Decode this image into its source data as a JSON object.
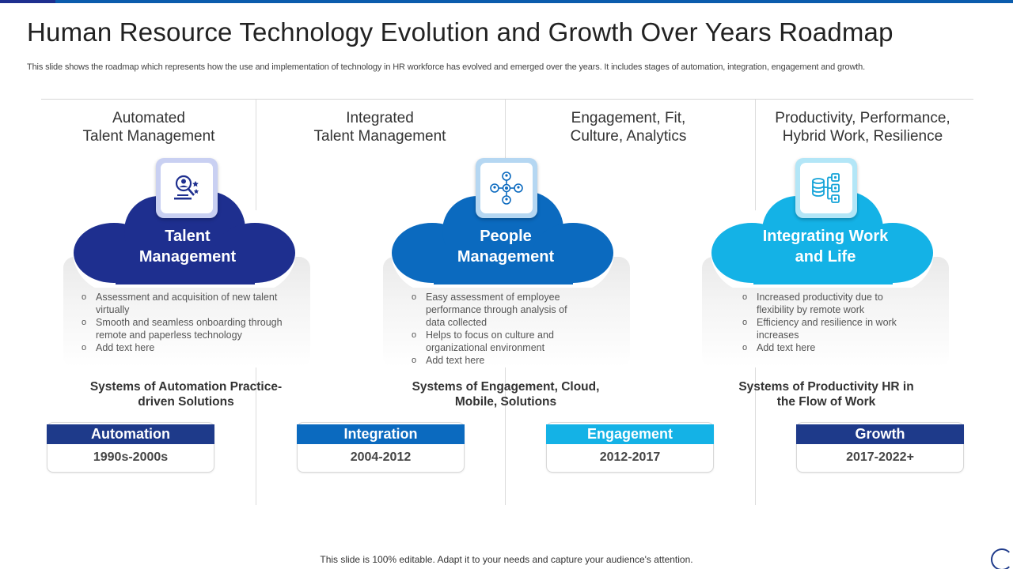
{
  "slide": {
    "title": "Human Resource Technology Evolution and Growth Over Years Roadmap",
    "subtitle": "This slide shows the roadmap which represents how the use and implementation of technology in HR workforce has evolved  and emerged over the years. It includes stages of automation, integration, engagement and growth.",
    "footer": "This slide is 100% editable. Adapt it to your needs and capture your audience's attention."
  },
  "colors": {
    "dark_navy": "#1e2f8f",
    "mid_blue": "#0b6abf",
    "sky_blue": "#14b2e6",
    "navy_label": "#1e3a8a"
  },
  "headings": [
    "Automated\nTalent Management",
    "Integrated\nTalent Management",
    "Engagement, Fit,\nCulture, Analytics",
    "Productivity, Performance,\nHybrid Work, Resilience"
  ],
  "clouds": [
    {
      "title": "Talent\nManagement",
      "icon": "talent-search-icon",
      "bullets": [
        "Assessment and acquisition of new talent virtually",
        "Smooth and seamless onboarding through remote and paperless technology",
        "Add text here"
      ]
    },
    {
      "title": "People\nManagement",
      "icon": "people-network-icon",
      "bullets": [
        "Easy assessment of employee performance through analysis of data collected",
        "Helps to focus on culture and organizational environment",
        "Add text here"
      ]
    },
    {
      "title": "Integrating Work\nand Life",
      "icon": "data-integration-icon",
      "bullets": [
        "Increased productivity due to flexibility by remote work",
        "Efficiency and resilience in work increases",
        "Add text here"
      ]
    }
  ],
  "systems": [
    "Systems of Automation Practice-\ndriven Solutions",
    "Systems of Engagement, Cloud,\nMobile, Solutions",
    "Systems of Productivity HR in\nthe Flow of Work"
  ],
  "stages": [
    {
      "label": "Automation",
      "years": "1990s-2000s",
      "color": "#1e3a8a"
    },
    {
      "label": "Integration",
      "years": "2004-2012",
      "color": "#0b6abf"
    },
    {
      "label": "Engagement",
      "years": "2012-2017",
      "color": "#14b2e6"
    },
    {
      "label": "Growth",
      "years": "2017-2022+",
      "color": "#1e3a8a"
    }
  ]
}
